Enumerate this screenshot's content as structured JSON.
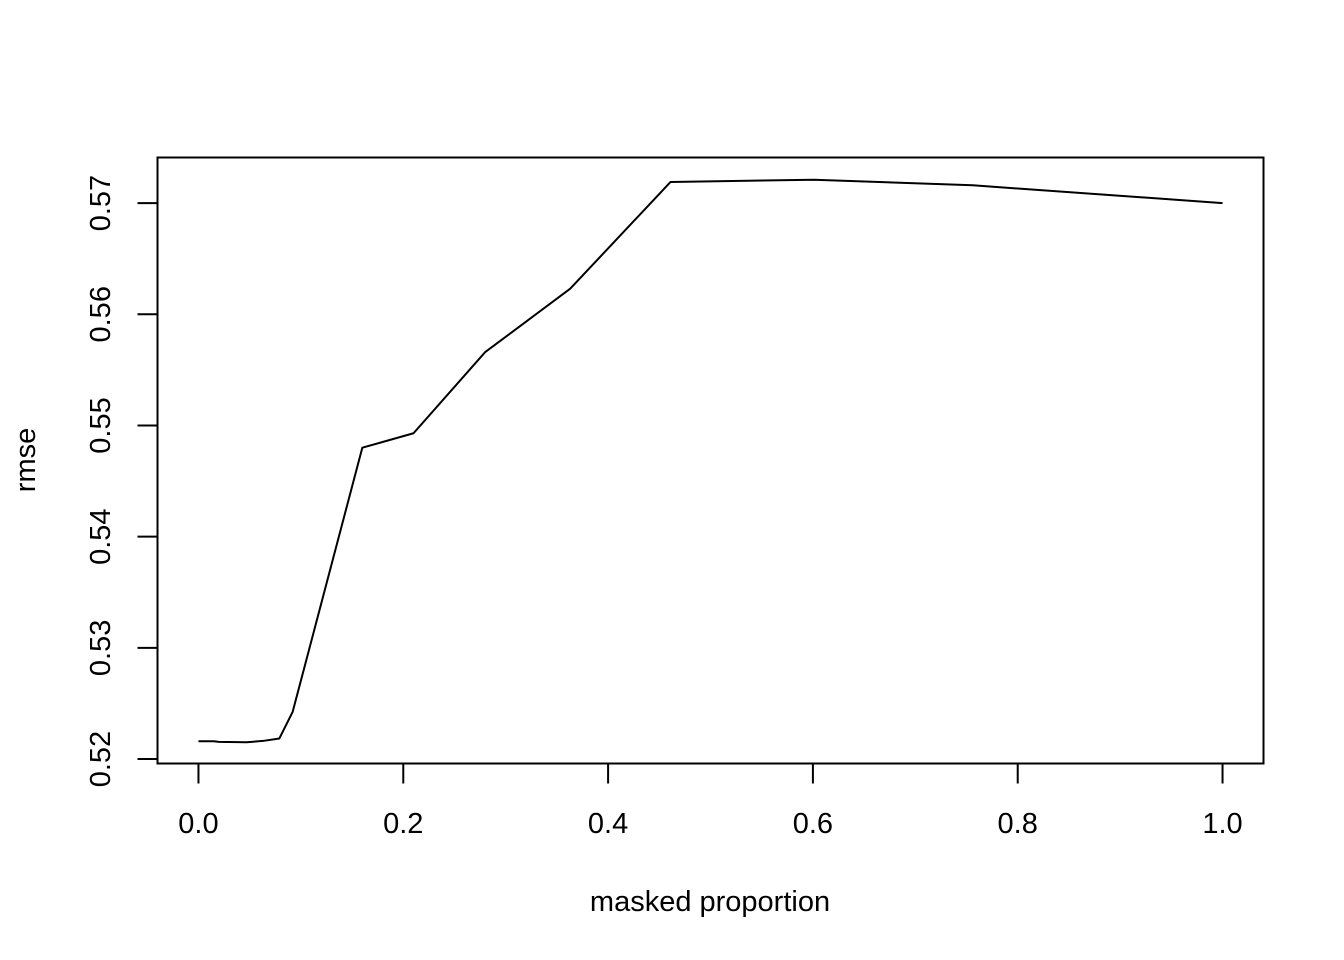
{
  "chart_data": {
    "type": "line",
    "title": "",
    "xlabel": "masked proportion",
    "ylabel": "rmse",
    "xlim": [
      -0.04,
      1.04
    ],
    "ylim": [
      0.5196,
      0.5741
    ],
    "x_ticks": [
      0.0,
      0.2,
      0.4,
      0.6,
      0.8,
      1.0
    ],
    "x_tick_labels": [
      "0.0",
      "0.2",
      "0.4",
      "0.6",
      "0.8",
      "1.0"
    ],
    "y_ticks": [
      0.52,
      0.53,
      0.54,
      0.55,
      0.56,
      0.57
    ],
    "y_tick_labels": [
      "0.52",
      "0.53",
      "0.54",
      "0.55",
      "0.56",
      "0.57"
    ],
    "grid": false,
    "legend": "none",
    "line_color": "#000000",
    "series": [
      {
        "x": [
          0.0,
          0.015,
          0.02,
          0.03,
          0.047,
          0.063,
          0.079,
          0.092,
          0.16,
          0.21,
          0.28,
          0.363,
          0.461,
          0.601,
          0.756,
          1.0
        ],
        "y": [
          0.5216,
          0.5216,
          0.52155,
          0.52153,
          0.52151,
          0.52163,
          0.52185,
          0.52425,
          0.548,
          0.5493,
          0.5566,
          0.5623,
          0.5719,
          0.5721,
          0.5716,
          0.57
        ]
      }
    ]
  }
}
